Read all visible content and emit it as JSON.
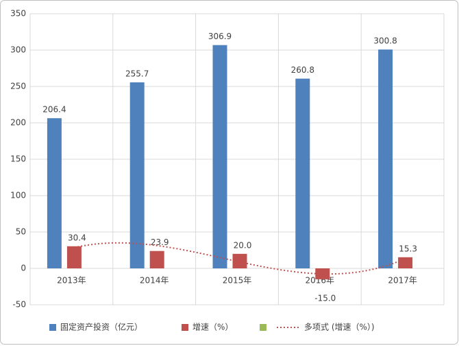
{
  "chart_data": {
    "type": "bar",
    "categories": [
      "2013年",
      "2014年",
      "2015年",
      "2016年",
      "2017年"
    ],
    "series": [
      {
        "name": "固定资产投资（亿元）",
        "color": "#4f81bd",
        "values": [
          206.4,
          255.7,
          306.9,
          260.8,
          300.8
        ]
      },
      {
        "name": "增速（%）",
        "color": "#c0504d",
        "values": [
          30.4,
          23.9,
          20.0,
          -15.0,
          15.3
        ],
        "value_labels": [
          "30.4",
          "23.9",
          "20.0",
          "-15.0",
          "15.3"
        ]
      }
    ],
    "trendline": {
      "name": "多项式 (增速（%）)",
      "series": 1,
      "order": 3,
      "color": "#c0504d"
    },
    "extra_legend_color": "#9bbb59",
    "ylim": [
      -50,
      350
    ],
    "yticks": [
      -50,
      0,
      50,
      100,
      150,
      200,
      250,
      300,
      350
    ],
    "grid": true
  }
}
